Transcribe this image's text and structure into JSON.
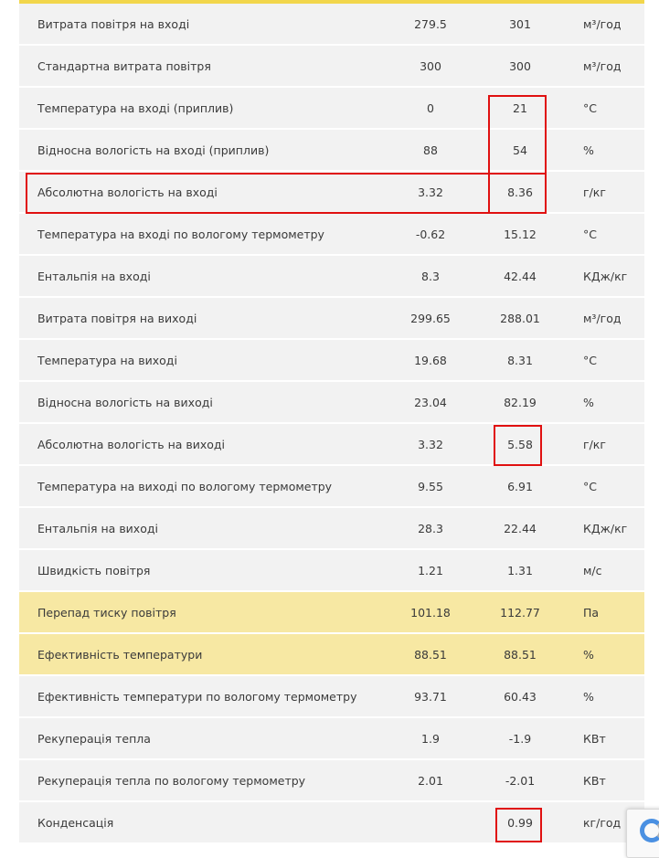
{
  "rows": [
    {
      "name": "Витрата повітря на вході",
      "v1": "279.5",
      "v2": "301",
      "unit": "м³/год"
    },
    {
      "name": "Стандартна витрата повітря",
      "v1": "300",
      "v2": "300",
      "unit": "м³/год"
    },
    {
      "name": "Температура на вході (приплив)",
      "v1": "0",
      "v2": "21",
      "unit": "°C"
    },
    {
      "name": "Відносна вологість на вході (приплив)",
      "v1": "88",
      "v2": "54",
      "unit": "%"
    },
    {
      "name": "Абсолютна вологість на вході",
      "v1": "3.32",
      "v2": "8.36",
      "unit": "г/кг"
    },
    {
      "name": "Температура на вході по вологому термометру",
      "v1": "-0.62",
      "v2": "15.12",
      "unit": "°C"
    },
    {
      "name": "Ентальпія на вході",
      "v1": "8.3",
      "v2": "42.44",
      "unit": "КДж/кг"
    },
    {
      "name": "Витрата повітря на виході",
      "v1": "299.65",
      "v2": "288.01",
      "unit": "м³/год"
    },
    {
      "name": "Температура на виході",
      "v1": "19.68",
      "v2": "8.31",
      "unit": "°C"
    },
    {
      "name": "Відносна вологість на виході",
      "v1": "23.04",
      "v2": "82.19",
      "unit": "%"
    },
    {
      "name": "Абсолютна вологість на виході",
      "v1": "3.32",
      "v2": "5.58",
      "unit": "г/кг"
    },
    {
      "name": "Температура на виході по вологому термометру",
      "v1": "9.55",
      "v2": "6.91",
      "unit": "°C"
    },
    {
      "name": "Ентальпія на виході",
      "v1": "28.3",
      "v2": "22.44",
      "unit": "КДж/кг"
    },
    {
      "name": "Швидкість повітря",
      "v1": "1.21",
      "v2": "1.31",
      "unit": "м/с"
    },
    {
      "name": "Перепад тиску повітря",
      "v1": "101.18",
      "v2": "112.77",
      "unit": "Па"
    },
    {
      "name": "Ефективність температури",
      "v1": "88.51",
      "v2": "88.51",
      "unit": "%"
    },
    {
      "name": "Ефективність температури по вологому термометру",
      "v1": "93.71",
      "v2": "60.43",
      "unit": "%"
    },
    {
      "name": "Рекуперація тепла",
      "v1": "1.9",
      "v2": "-1.9",
      "unit": "КВт"
    },
    {
      "name": "Рекуперація тепла по вологому термометру",
      "v1": "2.01",
      "v2": "-2.01",
      "unit": "КВт"
    },
    {
      "name": "Конденсація",
      "v1": "",
      "v2": "0.99",
      "unit": "кг/год"
    }
  ],
  "highlighted_rows": [
    14,
    15
  ],
  "colors": {
    "row_bg": "#f2f2f2",
    "highlight_bg": "#f7e8a3",
    "accent_bar": "#f2d64b",
    "annotation_red": "#e01010"
  }
}
